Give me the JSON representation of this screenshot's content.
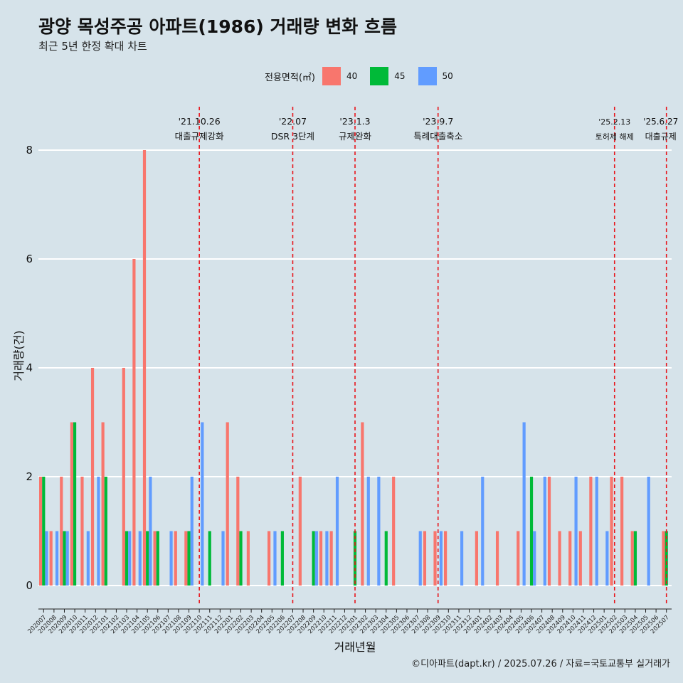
{
  "title": "광양 목성주공 아파트(1986) 거래량 변화 흐름",
  "subtitle": "최근 5년 한정 확대 차트",
  "caption": "©디아파트(dapt.kr) / 2025.07.26 / 자료=국토교통부 실거래가",
  "legend": {
    "title": "전용면적(㎡)",
    "items": [
      {
        "label": "40",
        "color": "#f8766d"
      },
      {
        "label": "45",
        "color": "#00ba38"
      },
      {
        "label": "50",
        "color": "#619cff"
      }
    ]
  },
  "chart_data": {
    "type": "bar",
    "xlabel": "거래년월",
    "ylabel": "거래량(건)",
    "ylim": [
      0,
      8
    ],
    "yticks": [
      0,
      2,
      4,
      6,
      8
    ],
    "grid": true,
    "legend_position": "top",
    "categories": [
      "202007",
      "202008",
      "202009",
      "202010",
      "202011",
      "202012",
      "202101",
      "202102",
      "202103",
      "202104",
      "202105",
      "202106",
      "202107",
      "202108",
      "202109",
      "202110",
      "202111",
      "202112",
      "202201",
      "202202",
      "202203",
      "202204",
      "202205",
      "202206",
      "202207",
      "202208",
      "202209",
      "202210",
      "202211",
      "202212",
      "202301",
      "202302",
      "202303",
      "202304",
      "202305",
      "202306",
      "202307",
      "202308",
      "202309",
      "202310",
      "202311",
      "202312",
      "202401",
      "202402",
      "202403",
      "202404",
      "202405",
      "202406",
      "202407",
      "202408",
      "202409",
      "202410",
      "202411",
      "202412",
      "202501",
      "202502",
      "202503",
      "202504",
      "202505",
      "202506",
      "202507"
    ],
    "series": [
      {
        "name": "40",
        "color": "#f8766d",
        "values": [
          2,
          1,
          2,
          3,
          2,
          4,
          3,
          0,
          4,
          6,
          8,
          1,
          0,
          1,
          1,
          0,
          0,
          0,
          3,
          2,
          1,
          0,
          1,
          0,
          0,
          2,
          0,
          1,
          1,
          0,
          0,
          3,
          0,
          0,
          2,
          0,
          0,
          1,
          1,
          1,
          0,
          0,
          1,
          0,
          1,
          0,
          1,
          0,
          0,
          2,
          1,
          1,
          1,
          2,
          0,
          2,
          2,
          1,
          0,
          0,
          1
        ]
      },
      {
        "name": "45",
        "color": "#00ba38",
        "values": [
          2,
          0,
          1,
          3,
          0,
          0,
          2,
          0,
          1,
          0,
          1,
          1,
          0,
          0,
          1,
          0,
          1,
          0,
          0,
          1,
          0,
          0,
          0,
          1,
          0,
          0,
          1,
          0,
          0,
          0,
          1,
          0,
          0,
          1,
          0,
          0,
          0,
          0,
          0,
          0,
          0,
          0,
          0,
          0,
          0,
          0,
          0,
          2,
          0,
          0,
          0,
          0,
          0,
          0,
          0,
          0,
          0,
          1,
          0,
          0,
          1
        ]
      },
      {
        "name": "50",
        "color": "#619cff",
        "values": [
          1,
          1,
          1,
          0,
          1,
          2,
          0,
          0,
          1,
          1,
          2,
          0,
          1,
          0,
          2,
          3,
          0,
          1,
          0,
          0,
          0,
          0,
          1,
          0,
          0,
          0,
          1,
          1,
          2,
          0,
          0,
          2,
          2,
          0,
          0,
          0,
          1,
          0,
          1,
          0,
          1,
          0,
          2,
          0,
          0,
          0,
          3,
          1,
          2,
          0,
          0,
          2,
          0,
          2,
          1,
          0,
          0,
          0,
          2,
          0,
          0
        ]
      }
    ],
    "annotations": [
      {
        "date": "'21.10.26",
        "label": "대출규제강화",
        "x": "202110"
      },
      {
        "date": "'22.07",
        "label": "DSR 3단계",
        "x": "202207"
      },
      {
        "date": "'23.1.3",
        "label": "규제완화",
        "x": "202301"
      },
      {
        "date": "'23.9.7",
        "label": "특례대출축소",
        "x": "202309"
      },
      {
        "date": "'25.2.13",
        "label": "토허제 해제",
        "x": "202502"
      },
      {
        "date": "'25.6.27",
        "label": "대출규제",
        "x": "202507"
      }
    ]
  }
}
